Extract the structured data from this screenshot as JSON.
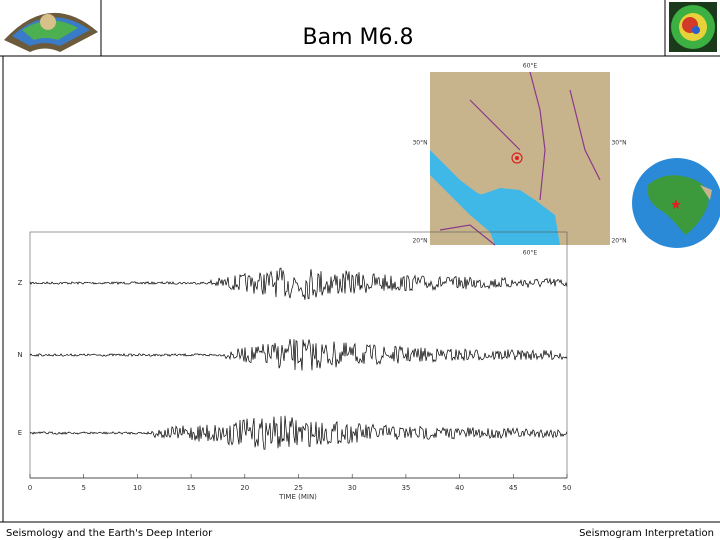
{
  "header": {
    "title": "Bam M6.8"
  },
  "map": {
    "labels": [
      "60°E",
      "30°N",
      "30°N",
      "20°N",
      "20°N",
      "60°E"
    ]
  },
  "seismogram": {
    "traces": [
      "Z",
      "N",
      "E"
    ],
    "time_axis": {
      "label": "TIME (MIN)",
      "xlim": [
        0,
        50
      ],
      "ticks": [
        0,
        5,
        10,
        15,
        20,
        25,
        30,
        35,
        40,
        45,
        50
      ]
    }
  },
  "footer": {
    "left": "Seismology and the Earth's Deep Interior",
    "right": "Seismogram Interpretation"
  }
}
